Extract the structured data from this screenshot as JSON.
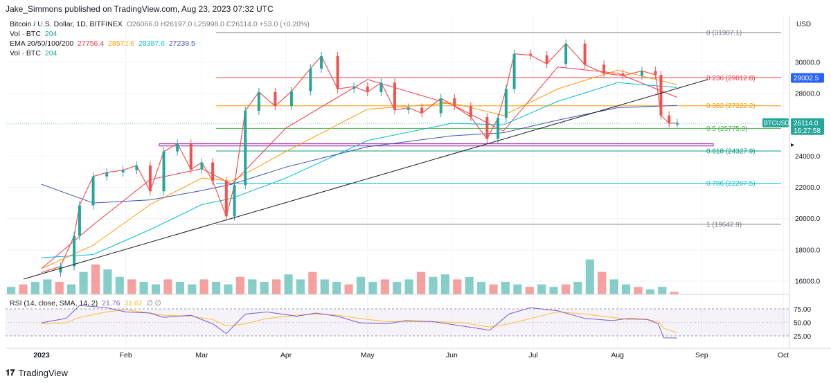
{
  "publisher": "Jake_Simmons published on TradingView.com, Aug 23, 2023 07:32 UTC",
  "legend": {
    "symbol": "Bitcoin / U.S. Dollar, 1D, BITFINEX",
    "ohlc": "O26066.0 H26197.0 L25998.0 C26114.0 +53.0 (+0.20%)",
    "vol_label": "Vol · BTC",
    "vol_value": "204",
    "ema_label": "EMA 20/50/100/200",
    "ema20": "27756.4",
    "ema50": "28572.6",
    "ema100": "28387.6",
    "ema200": "27239.5",
    "vol2_label": "Vol · BTC",
    "vol2_value": "204"
  },
  "rsi_label": "RSI (14, close, SMA, 14, 2)",
  "rsi_value": "21.76",
  "rsi_value2": "31.62",
  "currency": "USD",
  "branding": "TradingView",
  "colors": {
    "up": "#26a69a",
    "down": "#ef5350",
    "ema20": "#f23645",
    "ema50": "#ff9800",
    "ema100": "#00bcd4",
    "ema200": "#3f51b5",
    "rsi": "#7e57c2",
    "rsi_sma": "#fbc02d",
    "trendline": "#131722"
  },
  "chart_data": {
    "type": "candlestick",
    "title": "Bitcoin / U.S. Dollar, 1D, BITFINEX",
    "y_axis_ticks": [
      "16000.0",
      "18000.0",
      "20000.0",
      "22000.0",
      "24000.0",
      "26000.0",
      "28000.0",
      "30000.0"
    ],
    "ylim": [
      15000,
      32000
    ],
    "x_axis_ticks": [
      "2023",
      "Feb",
      "Mar",
      "Apr",
      "May",
      "Jun",
      "Jul",
      "Aug",
      "Sep",
      "Oct"
    ],
    "price_labels": [
      {
        "label": "29002.5",
        "value": 29002.5,
        "color": "#2962ff"
      },
      {
        "label": "BTCUSD",
        "value": 26114.0,
        "color": "#26a69a"
      },
      {
        "label": "26114.0",
        "value": 26114.0,
        "color": "#26a69a"
      },
      {
        "label": "16:27:58",
        "value": 26114.0,
        "color": "#26a69a"
      }
    ],
    "fibonacci": [
      {
        "label": "0 (31907.1)",
        "value": 31907.1,
        "color": "#787b86"
      },
      {
        "label": "0.236 (29012.8)",
        "value": 29012.8,
        "color": "#f23645"
      },
      {
        "label": "0.382 (27222.2)",
        "value": 27222.2,
        "color": "#ff9800"
      },
      {
        "label": "0.5 (25775.0)",
        "value": 25775.0,
        "color": "#4caf50"
      },
      {
        "label": "0.618 (24327.9)",
        "value": 24327.9,
        "color": "#089981"
      },
      {
        "label": "0.786 (22267.5)",
        "value": 22267.5,
        "color": "#00bcd4"
      },
      {
        "label": "1 (19642.9)",
        "value": 19642.9,
        "color": "#787b86"
      }
    ],
    "support_zone": [
      24650,
      24800
    ],
    "trendline": [
      {
        "date": "2023-01-01",
        "price": 16400
      },
      {
        "date": "2023-08-23",
        "price": 28900
      }
    ],
    "series_close": {
      "dates": [
        "2023-01-01",
        "2023-01-08",
        "2023-01-13",
        "2023-01-15",
        "2023-01-20",
        "2023-01-25",
        "2023-01-31",
        "2023-02-05",
        "2023-02-10",
        "2023-02-15",
        "2023-02-20",
        "2023-02-25",
        "2023-03-01",
        "2023-03-05",
        "2023-03-10",
        "2023-03-13",
        "2023-03-17",
        "2023-03-22",
        "2023-03-28",
        "2023-04-03",
        "2023-04-10",
        "2023-04-14",
        "2023-04-20",
        "2023-04-26",
        "2023-05-01",
        "2023-05-06",
        "2023-05-11",
        "2023-05-16",
        "2023-05-21",
        "2023-05-28",
        "2023-06-02",
        "2023-06-08",
        "2023-06-14",
        "2023-06-18",
        "2023-06-21",
        "2023-06-24",
        "2023-06-30",
        "2023-07-06",
        "2023-07-13",
        "2023-07-20",
        "2023-07-27",
        "2023-08-03",
        "2023-08-10",
        "2023-08-15",
        "2023-08-17",
        "2023-08-20",
        "2023-08-23"
      ],
      "values": [
        16550,
        16950,
        18900,
        20850,
        22700,
        22950,
        23100,
        23400,
        21750,
        24300,
        24800,
        23150,
        23600,
        22400,
        20150,
        22150,
        26900,
        28100,
        27200,
        28150,
        29600,
        30400,
        28300,
        28450,
        28100,
        28700,
        26950,
        27100,
        26750,
        27700,
        27200,
        26500,
        25100,
        26450,
        28300,
        30550,
        30450,
        29900,
        31200,
        29850,
        29300,
        29150,
        29450,
        29200,
        26600,
        26100,
        26114
      ]
    },
    "moving_averages": {
      "ema20": {
        "dates": [
          "2023-01-01",
          "2023-01-20",
          "2023-02-10",
          "2023-03-01",
          "2023-03-12",
          "2023-04-01",
          "2023-05-01",
          "2023-06-01",
          "2023-06-20",
          "2023-07-10",
          "2023-08-01",
          "2023-08-23"
        ],
        "values": [
          16800,
          19600,
          22500,
          23200,
          22200,
          25800,
          28900,
          27300,
          25600,
          29700,
          29300,
          27756.4
        ]
      },
      "ema50": {
        "dates": [
          "2023-01-01",
          "2023-01-20",
          "2023-02-10",
          "2023-03-01",
          "2023-03-12",
          "2023-04-01",
          "2023-05-01",
          "2023-06-01",
          "2023-06-20",
          "2023-07-10",
          "2023-08-01",
          "2023-08-23"
        ],
        "values": [
          16800,
          18300,
          20900,
          22600,
          22400,
          24300,
          27000,
          27400,
          26600,
          28300,
          29500,
          28572.6
        ]
      },
      "ema100": {
        "dates": [
          "2023-01-01",
          "2023-01-20",
          "2023-02-10",
          "2023-03-01",
          "2023-03-12",
          "2023-04-01",
          "2023-05-01",
          "2023-06-01",
          "2023-06-20",
          "2023-07-10",
          "2023-08-01",
          "2023-08-23"
        ],
        "values": [
          17500,
          17700,
          19300,
          20900,
          21300,
          22600,
          25000,
          26100,
          26000,
          27500,
          28700,
          28387.6
        ]
      },
      "ema200": {
        "dates": [
          "2023-01-01",
          "2023-01-20",
          "2023-02-10",
          "2023-03-01",
          "2023-03-12",
          "2023-04-01",
          "2023-05-01",
          "2023-06-01",
          "2023-06-20",
          "2023-07-10",
          "2023-08-01",
          "2023-08-23"
        ],
        "values": [
          22200,
          21000,
          21200,
          21800,
          22200,
          23300,
          24600,
          25300,
          25500,
          26300,
          27100,
          27239.5
        ]
      }
    },
    "volume": {
      "values": [
        3,
        4,
        5,
        6,
        5,
        4,
        9,
        12,
        10,
        7,
        6,
        5,
        4,
        6,
        5,
        4,
        6,
        5,
        4,
        7,
        6,
        5,
        6,
        8,
        6,
        9,
        6,
        5,
        4,
        7,
        5,
        6,
        5,
        6,
        9,
        7,
        8,
        6,
        7,
        5,
        4,
        5,
        4,
        3,
        4,
        3,
        4,
        5,
        14,
        9,
        6,
        4,
        3,
        2,
        3,
        1
      ]
    },
    "rsi": {
      "axis_ticks": [
        "75.00",
        "50.00",
        "25.00"
      ],
      "ylim": [
        15,
        85
      ],
      "bands": [
        30,
        70
      ],
      "dates": [
        "2023-01-01",
        "2023-01-10",
        "2023-01-15",
        "2023-01-25",
        "2023-02-01",
        "2023-02-10",
        "2023-02-15",
        "2023-02-25",
        "2023-03-05",
        "2023-03-10",
        "2023-03-17",
        "2023-03-25",
        "2023-04-05",
        "2023-04-12",
        "2023-04-20",
        "2023-04-28",
        "2023-05-08",
        "2023-05-15",
        "2023-05-25",
        "2023-06-05",
        "2023-06-10",
        "2023-06-15",
        "2023-06-22",
        "2023-06-30",
        "2023-07-10",
        "2023-07-20",
        "2023-07-30",
        "2023-08-05",
        "2023-08-12",
        "2023-08-16",
        "2023-08-18",
        "2023-08-23"
      ],
      "values": [
        50,
        58,
        82,
        78,
        70,
        68,
        60,
        64,
        48,
        30,
        66,
        70,
        62,
        68,
        62,
        50,
        48,
        54,
        52,
        44,
        40,
        36,
        66,
        78,
        72,
        58,
        54,
        58,
        56,
        48,
        22,
        21.76
      ],
      "sma_values": [
        48,
        50,
        60,
        70,
        74,
        68,
        64,
        62,
        56,
        44,
        48,
        58,
        64,
        66,
        64,
        58,
        52,
        52,
        52,
        50,
        46,
        42,
        48,
        58,
        70,
        66,
        60,
        56,
        56,
        52,
        40,
        31.62
      ]
    }
  }
}
